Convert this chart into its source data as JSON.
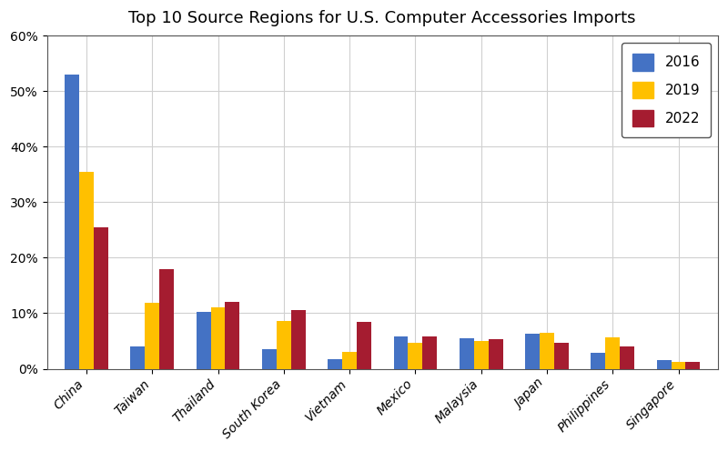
{
  "title": "Top 10 Source Regions for U.S. Computer Accessories Imports",
  "categories": [
    "China",
    "Taiwan",
    "Thailand",
    "South Korea",
    "Vietnam",
    "Mexico",
    "Malaysia",
    "Japan",
    "Philippines",
    "Singapore"
  ],
  "series": {
    "2016": [
      0.53,
      0.04,
      0.103,
      0.035,
      0.018,
      0.058,
      0.055,
      0.063,
      0.028,
      0.015
    ],
    "2019": [
      0.355,
      0.118,
      0.11,
      0.086,
      0.03,
      0.047,
      0.05,
      0.065,
      0.057,
      0.013
    ],
    "2022": [
      0.255,
      0.18,
      0.12,
      0.105,
      0.085,
      0.058,
      0.053,
      0.047,
      0.04,
      0.013
    ]
  },
  "colors": {
    "2016": "#4472C4",
    "2019": "#FFC000",
    "2022": "#A51C30"
  },
  "ylim": [
    0,
    0.6
  ],
  "yticks": [
    0.0,
    0.1,
    0.2,
    0.3,
    0.4,
    0.5,
    0.6
  ],
  "ytick_labels": [
    "0%",
    "10%",
    "20%",
    "30%",
    "40%",
    "50%",
    "60%"
  ],
  "legend_labels": [
    "2016",
    "2019",
    "2022"
  ],
  "bar_width": 0.22,
  "title_fontsize": 13,
  "tick_fontsize": 10,
  "legend_fontsize": 11,
  "background_color": "#ffffff",
  "grid_color": "#d0d0d0"
}
